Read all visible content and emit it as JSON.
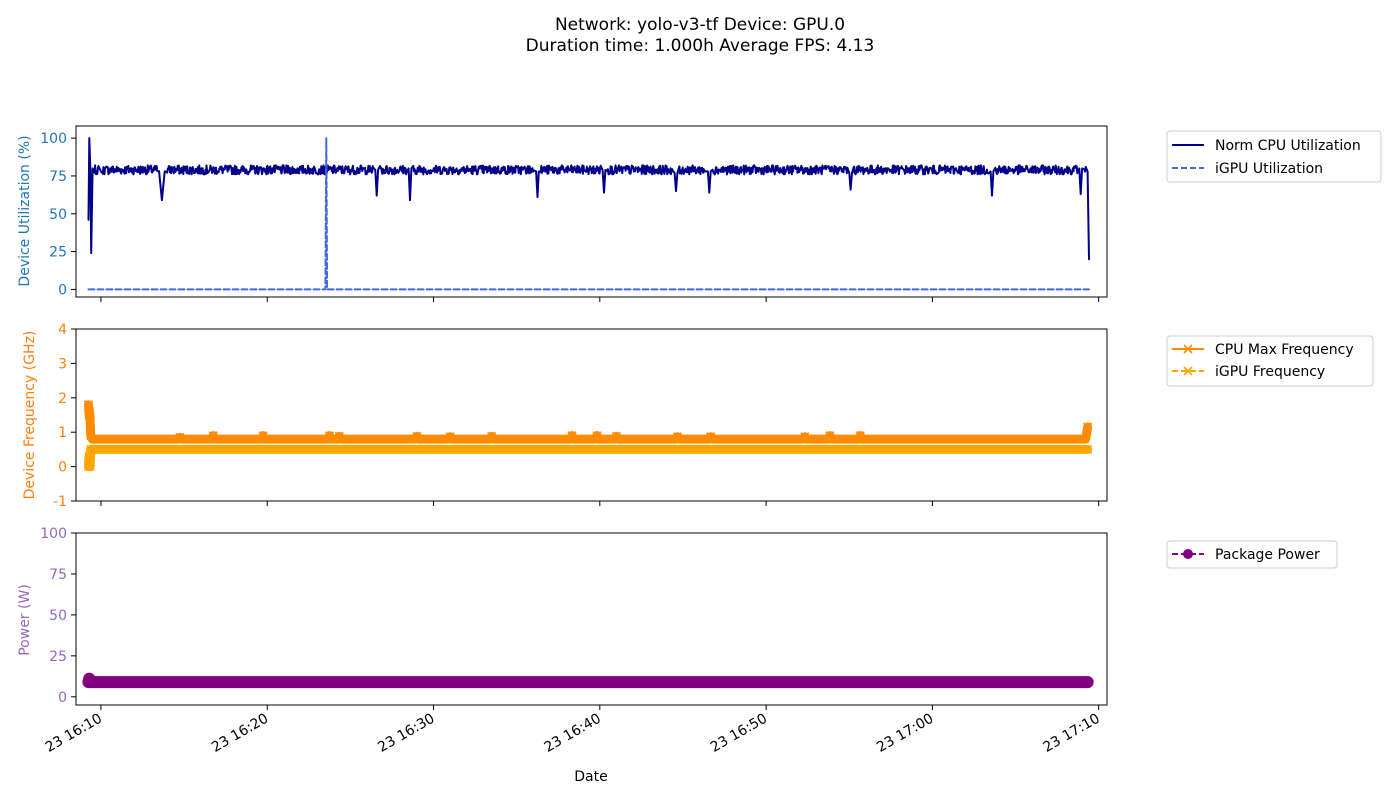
{
  "figure": {
    "title_line1": "Network: yolo-v3-tf Device: GPU.0",
    "title_line2": "Duration time: 1.000h Average FPS: 4.13",
    "xlabel": "Date",
    "x_tick_labels": [
      "23 16:10",
      "23 16:20",
      "23 16:30",
      "23 16:40",
      "23 16:50",
      "23 17:00",
      "23 17:10"
    ]
  },
  "chart_data": [
    {
      "type": "line",
      "ylabel": "Device Utilization (%)",
      "ylabel_color": "#1f77b4",
      "ylim": [
        -5,
        108
      ],
      "yticks": [
        0,
        25,
        50,
        75,
        100
      ],
      "xlim": [
        "16:08:30",
        "17:10:30"
      ],
      "grid": false,
      "legend_position": "outside-right-top",
      "series": [
        {
          "name": "Norm CPU Utilization",
          "color": "#00008b",
          "style": "solid",
          "marker": "none",
          "baseline": 79,
          "points": [
            [
              "16:09:15",
              46
            ],
            [
              "16:09:18",
              100
            ],
            [
              "16:09:22",
              78
            ],
            [
              "16:09:25",
              24
            ],
            [
              "16:09:30",
              80
            ],
            [
              "16:10:00",
              78
            ],
            [
              "16:13:30",
              78
            ],
            [
              "16:13:40",
              59
            ],
            [
              "16:13:50",
              78
            ],
            [
              "16:26:30",
              79
            ],
            [
              "16:26:35",
              62
            ],
            [
              "16:26:40",
              79
            ],
            [
              "16:28:30",
              80
            ],
            [
              "16:28:35",
              59
            ],
            [
              "16:28:40",
              80
            ],
            [
              "16:36:10",
              78
            ],
            [
              "16:36:15",
              61
            ],
            [
              "16:36:20",
              78
            ],
            [
              "16:40:10",
              79
            ],
            [
              "16:40:15",
              64
            ],
            [
              "16:40:20",
              79
            ],
            [
              "16:44:30",
              77
            ],
            [
              "16:44:35",
              65
            ],
            [
              "16:44:40",
              77
            ],
            [
              "16:46:30",
              78
            ],
            [
              "16:46:35",
              64
            ],
            [
              "16:46:40",
              78
            ],
            [
              "16:55:00",
              77
            ],
            [
              "16:55:05",
              66
            ],
            [
              "16:55:10",
              77
            ],
            [
              "17:03:30",
              78
            ],
            [
              "17:03:35",
              62
            ],
            [
              "17:03:40",
              78
            ],
            [
              "17:08:50",
              80
            ],
            [
              "17:08:55",
              63
            ],
            [
              "17:09:00",
              80
            ],
            [
              "17:09:20",
              78
            ],
            [
              "17:09:25",
              20
            ]
          ]
        },
        {
          "name": "iGPU Utilization",
          "color": "#4169e1",
          "style": "dashed",
          "marker": "none",
          "points": [
            [
              "16:09:15",
              0
            ],
            [
              "16:23:30",
              0
            ],
            [
              "16:23:33",
              100
            ],
            [
              "16:23:36",
              0
            ],
            [
              "17:09:25",
              0
            ]
          ]
        }
      ]
    },
    {
      "type": "line",
      "ylabel": "Device Frequency (GHz)",
      "ylabel_color": "#ff7f0e",
      "ylim": [
        -1,
        4
      ],
      "yticks": [
        -1,
        0,
        1,
        2,
        3,
        4
      ],
      "xlim": [
        "16:08:30",
        "17:10:30"
      ],
      "grid": false,
      "legend_position": "outside-right-top",
      "series": [
        {
          "name": "CPU Max Frequency",
          "color": "#ff8c00",
          "style": "solid",
          "marker": "x",
          "baseline": 0.8,
          "points": [
            [
              "16:09:15",
              1.8
            ],
            [
              "16:09:17",
              1.5
            ],
            [
              "16:09:19",
              1.6
            ],
            [
              "16:09:21",
              1.4
            ],
            [
              "16:09:23",
              0.9
            ],
            [
              "16:14:45",
              0.85
            ],
            [
              "16:16:45",
              0.9
            ],
            [
              "16:19:45",
              0.9
            ],
            [
              "16:23:45",
              0.9
            ],
            [
              "16:24:20",
              0.88
            ],
            [
              "16:29:00",
              0.88
            ],
            [
              "16:31:00",
              0.87
            ],
            [
              "16:33:30",
              0.88
            ],
            [
              "16:38:20",
              0.9
            ],
            [
              "16:39:50",
              0.9
            ],
            [
              "16:41:00",
              0.88
            ],
            [
              "16:44:40",
              0.87
            ],
            [
              "16:46:40",
              0.87
            ],
            [
              "16:52:20",
              0.87
            ],
            [
              "16:53:50",
              0.9
            ],
            [
              "16:55:40",
              0.9
            ],
            [
              "17:09:20",
              1.15
            ]
          ]
        },
        {
          "name": "iGPU Frequency",
          "color": "#ffa500",
          "style": "dashed",
          "marker": "x",
          "baseline": 0.5,
          "points": [
            [
              "16:09:15",
              0.0
            ],
            [
              "16:09:17",
              0.3
            ],
            [
              "16:09:19",
              0.1
            ],
            [
              "16:09:21",
              0.0
            ],
            [
              "16:09:23",
              0.5
            ],
            [
              "17:09:20",
              0.5
            ]
          ]
        }
      ]
    },
    {
      "type": "line",
      "ylabel": "Power (W)",
      "ylabel_color": "#9467bd",
      "ylim": [
        -5,
        100
      ],
      "yticks": [
        0,
        25,
        50,
        75,
        100
      ],
      "xlim": [
        "16:08:30",
        "17:10:30"
      ],
      "grid": false,
      "legend_position": "outside-right-top",
      "series": [
        {
          "name": "Package Power",
          "color": "#800080",
          "style": "dashed",
          "marker": "o",
          "baseline": 9,
          "points": [
            [
              "16:09:15",
              9
            ],
            [
              "16:09:18",
              11
            ],
            [
              "16:09:21",
              9
            ],
            [
              "17:09:20",
              9
            ]
          ]
        }
      ]
    }
  ]
}
